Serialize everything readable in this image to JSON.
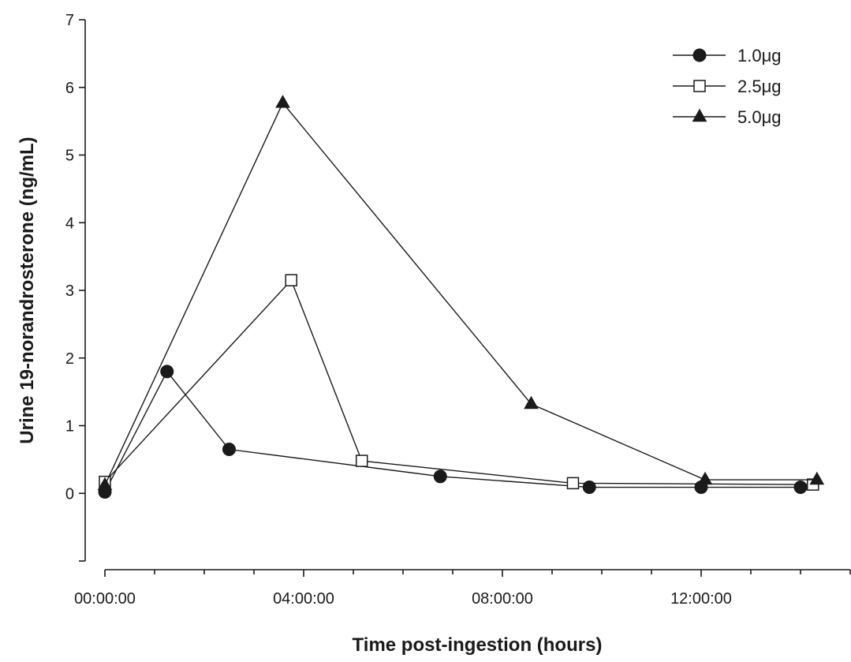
{
  "chart_data": {
    "type": "line",
    "xlabel": "Time post-ingestion (hours)",
    "ylabel": "Urine 19-norandrosterone (ng/mL)",
    "xlim": [
      0,
      15
    ],
    "ylim": [
      -1,
      7
    ],
    "x_major_ticks": [
      0,
      4,
      8,
      12
    ],
    "x_minor_ticks": [
      1,
      2,
      3,
      5,
      6,
      7,
      9,
      10,
      11,
      13,
      14,
      15
    ],
    "x_tick_labels": [
      "00:00:00",
      "04:00:00",
      "08:00:00",
      "12:00:00"
    ],
    "y_ticks": [
      0,
      1,
      2,
      3,
      4,
      5,
      6,
      7
    ],
    "y_tick_labels": [
      "0",
      "1",
      "2",
      "3",
      "4",
      "5",
      "6",
      "7"
    ],
    "grid": false,
    "legend_position": "top-right",
    "series": [
      {
        "name": "1.0μg",
        "marker": "filled-circle",
        "color": "#1a1a1a",
        "x": [
          0,
          1.25,
          2.5,
          6.75,
          9.75,
          12.0,
          14.0
        ],
        "y": [
          0.02,
          1.8,
          0.65,
          0.25,
          0.09,
          0.09,
          0.09
        ]
      },
      {
        "name": "2.5μg",
        "marker": "open-square",
        "color": "#1a1a1a",
        "x": [
          0,
          3.75,
          5.17,
          9.42,
          14.25
        ],
        "y": [
          0.17,
          3.15,
          0.48,
          0.15,
          0.13
        ]
      },
      {
        "name": "5.0μg",
        "marker": "filled-triangle",
        "color": "#1a1a1a",
        "x": [
          0,
          3.58,
          8.58,
          12.08,
          14.33
        ],
        "y": [
          0.12,
          5.77,
          1.32,
          0.2,
          0.2
        ]
      }
    ]
  }
}
